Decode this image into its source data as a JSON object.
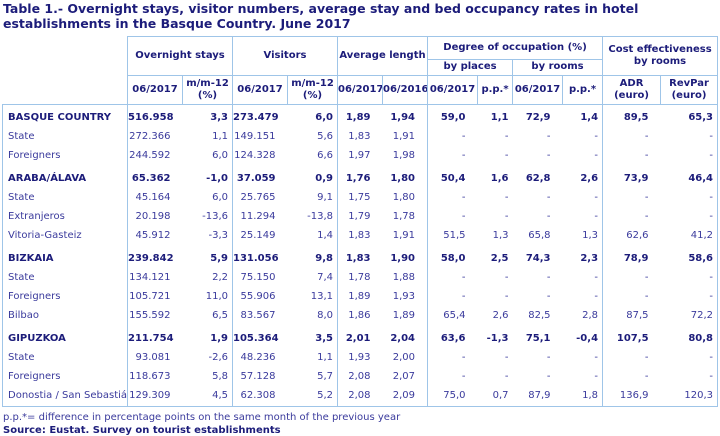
{
  "title": "Table 1.- Overnight stays, visitor numbers, average stay and bed occupancy rates in hotel establishments in the Basque Country. June 2017",
  "table": {
    "group_headers": {
      "overnight": "Overnight stays",
      "visitors": "Visitors",
      "avg_length": "Average length",
      "occupation": "Degree of occupation (%)",
      "cost": "Cost effectiveness\nby rooms"
    },
    "sub_headers": {
      "by_places": "by places",
      "by_rooms": "by rooms"
    },
    "columns": [
      "06/2017",
      "m/m-12\n(%)",
      "06/2017",
      "m/m-12\n(%)",
      "06/2017",
      "06/2016",
      "06/2017",
      "p.p.*",
      "06/2017",
      "p.p.*",
      "ADR\n(euro)",
      "RevPar\n(euro)"
    ],
    "rows": [
      {
        "label": "BASQUE COUNTRY",
        "section": true,
        "values": [
          "516.958",
          "3,3",
          "273.479",
          "6,0",
          "1,89",
          "1,94",
          "59,0",
          "1,1",
          "72,9",
          "1,4",
          "89,5",
          "65,3"
        ]
      },
      {
        "label": "State",
        "section": false,
        "values": [
          "272.366",
          "1,1",
          "149.151",
          "5,6",
          "1,83",
          "1,91",
          "-",
          "-",
          "-",
          "-",
          "-",
          "-"
        ]
      },
      {
        "label": "Foreigners",
        "section": false,
        "values": [
          "244.592",
          "6,0",
          "124.328",
          "6,6",
          "1,97",
          "1,98",
          "-",
          "-",
          "-",
          "-",
          "-",
          "-"
        ]
      },
      {
        "label": "ARABA/ÁLAVA",
        "section": true,
        "values": [
          "65.362",
          "-1,0",
          "37.059",
          "0,9",
          "1,76",
          "1,80",
          "50,4",
          "1,6",
          "62,8",
          "2,6",
          "73,9",
          "46,4"
        ]
      },
      {
        "label": "State",
        "section": false,
        "values": [
          "45.164",
          "6,0",
          "25.765",
          "9,1",
          "1,75",
          "1,80",
          "-",
          "-",
          "-",
          "-",
          "-",
          "-"
        ]
      },
      {
        "label": "Extranjeros",
        "section": false,
        "values": [
          "20.198",
          "-13,6",
          "11.294",
          "-13,8",
          "1,79",
          "1,78",
          "-",
          "-",
          "-",
          "-",
          "-",
          "-"
        ]
      },
      {
        "label": "Vitoria-Gasteiz",
        "section": false,
        "values": [
          "45.912",
          "-3,3",
          "25.149",
          "1,4",
          "1,83",
          "1,91",
          "51,5",
          "1,3",
          "65,8",
          "1,3",
          "62,6",
          "41,2"
        ]
      },
      {
        "label": "BIZKAIA",
        "section": true,
        "values": [
          "239.842",
          "5,9",
          "131.056",
          "9,8",
          "1,83",
          "1,90",
          "58,0",
          "2,5",
          "74,3",
          "2,3",
          "78,9",
          "58,6"
        ]
      },
      {
        "label": "State",
        "section": false,
        "values": [
          "134.121",
          "2,2",
          "75.150",
          "7,4",
          "1,78",
          "1,88",
          "-",
          "-",
          "-",
          "-",
          "-",
          "-"
        ]
      },
      {
        "label": "Foreigners",
        "section": false,
        "values": [
          "105.721",
          "11,0",
          "55.906",
          "13,1",
          "1,89",
          "1,93",
          "-",
          "-",
          "-",
          "-",
          "-",
          "-"
        ]
      },
      {
        "label": "Bilbao",
        "section": false,
        "values": [
          "155.592",
          "6,5",
          "83.567",
          "8,0",
          "1,86",
          "1,89",
          "65,4",
          "2,6",
          "82,5",
          "2,8",
          "87,5",
          "72,2"
        ]
      },
      {
        "label": "GIPUZKOA",
        "section": true,
        "values": [
          "211.754",
          "1,9",
          "105.364",
          "3,5",
          "2,01",
          "2,04",
          "63,6",
          "-1,3",
          "75,1",
          "-0,4",
          "107,5",
          "80,8"
        ]
      },
      {
        "label": "State",
        "section": false,
        "values": [
          "93.081",
          "-2,6",
          "48.236",
          "1,1",
          "1,93",
          "2,00",
          "-",
          "-",
          "-",
          "-",
          "-",
          "-"
        ]
      },
      {
        "label": "Foreigners",
        "section": false,
        "values": [
          "118.673",
          "5,8",
          "57.128",
          "5,7",
          "2,08",
          "2,07",
          "-",
          "-",
          "-",
          "-",
          "-",
          "-"
        ]
      },
      {
        "label": "Donostia / San Sebastián",
        "section": false,
        "values": [
          "129.309",
          "4,5",
          "62.308",
          "5,2",
          "2,08",
          "2,09",
          "75,0",
          "0,7",
          "87,9",
          "1,8",
          "136,9",
          "120,3"
        ]
      }
    ]
  },
  "footnote": "p.p.*= difference in percentage points on the same month of the previous year",
  "source": "Source: Eustat. Survey on tourist establishments",
  "colors": {
    "border": "#9fc5e8",
    "heading_text": "#1c1c7a",
    "body_text": "#3a3a9c"
  }
}
